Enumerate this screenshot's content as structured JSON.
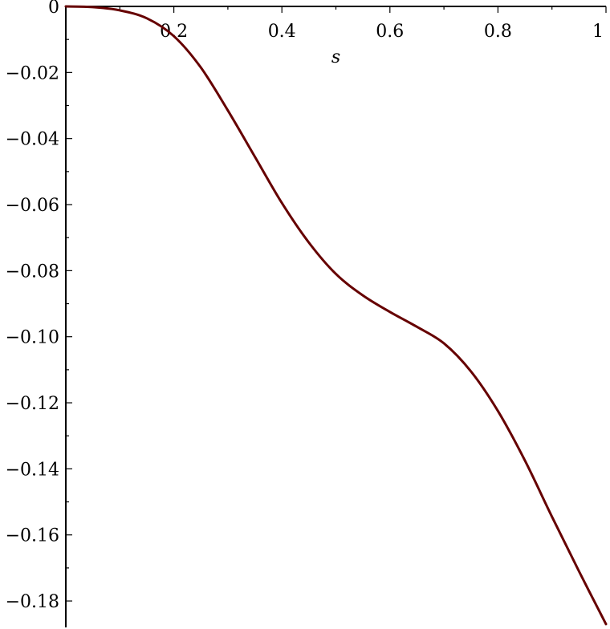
{
  "chart_data": {
    "type": "line",
    "title": "",
    "xlabel": "s",
    "ylabel": "",
    "xlim": [
      0,
      1
    ],
    "ylim": [
      -0.188,
      0
    ],
    "grid": false,
    "x_ticks": [
      0.2,
      0.4,
      0.6,
      0.8,
      1
    ],
    "x_tick_labels": [
      "0.2",
      "0.4",
      "0.6",
      "0.8",
      "1"
    ],
    "y_ticks": [
      0,
      -0.02,
      -0.04,
      -0.06,
      -0.08,
      -0.1,
      -0.12,
      -0.14,
      -0.16,
      -0.18
    ],
    "y_tick_labels": [
      "0",
      "−0.02",
      "−0.04",
      "−0.06",
      "−0.08",
      "−0.10",
      "−0.12",
      "−0.14",
      "−0.16",
      "−0.18"
    ],
    "series": [
      {
        "color": "#660000",
        "x": [
          0,
          0.05,
          0.1,
          0.15,
          0.2,
          0.25,
          0.3,
          0.35,
          0.4,
          0.45,
          0.5,
          0.55,
          0.6,
          0.65,
          0.7,
          0.75,
          0.8,
          0.85,
          0.9,
          0.95,
          1
        ],
        "y": [
          0,
          -0.0002,
          -0.0012,
          -0.0036,
          -0.009,
          -0.0185,
          -0.0315,
          -0.0455,
          -0.0595,
          -0.0715,
          -0.081,
          -0.0875,
          -0.0925,
          -0.097,
          -0.102,
          -0.1105,
          -0.1225,
          -0.1375,
          -0.1545,
          -0.171,
          -0.187
        ]
      }
    ]
  }
}
